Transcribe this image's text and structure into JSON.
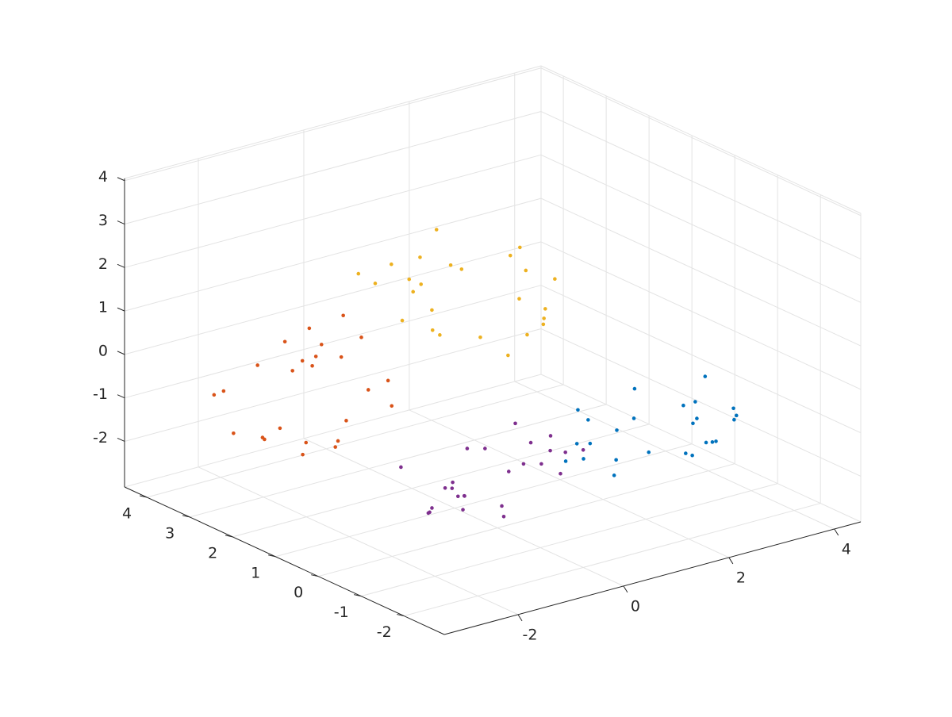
{
  "chart_data": {
    "type": "scatter3",
    "xlim": [
      -3.4,
      4.5
    ],
    "ylim": [
      -2.94,
      4.52
    ],
    "zlim": [
      -3.05,
      4.05
    ],
    "xticks": [
      -2,
      0,
      2,
      4
    ],
    "yticks": [
      -2,
      -1,
      0,
      1,
      2,
      3,
      4
    ],
    "zticks": [
      -2,
      -1,
      0,
      1,
      2,
      3,
      4
    ],
    "grid": true,
    "series": [
      {
        "color": "#0072BD",
        "x": [
          3.3,
          2.2,
          4.1,
          2.8,
          3.6,
          1.8,
          3.9,
          2.5,
          3.1,
          4.4,
          2.1,
          3.4,
          2.7,
          3.8,
          2.0,
          3.2,
          2.4,
          4.0,
          2.9,
          3.5,
          1.7,
          3.7,
          2.6,
          4.2,
          3.0
        ],
        "y": [
          -0.5,
          0.7,
          0.2,
          -1.1,
          0.9,
          0.1,
          -0.3,
          1.2,
          -0.8,
          0.4,
          -0.2,
          1.0,
          0.6,
          -0.9,
          0.3,
          -0.4,
          1.1,
          -0.6,
          0.8,
          -1.2,
          0.5,
          -0.1,
          0.0,
          0.3,
          -0.7
        ],
        "z": [
          -1.5,
          -2.5,
          -1.0,
          -1.8,
          -2.9,
          -1.2,
          -2.2,
          -1.7,
          -0.8,
          -2.7,
          -1.4,
          -2.1,
          -3.0,
          -1.3,
          -1.9,
          -1.1,
          -2.4,
          -1.6,
          -2.8,
          -0.9,
          -2.3,
          -1.7,
          -0.7,
          -2.6,
          -2.0
        ]
      },
      {
        "color": "#D95319",
        "x": [
          -0.6,
          -1.6,
          -0.1,
          -0.9,
          -2.0,
          -0.3,
          -1.3,
          -0.8,
          0.1,
          -1.8,
          -0.5,
          -1.2,
          -2.1,
          -0.4,
          -1.0,
          -0.2,
          -1.5,
          -0.7,
          -1.9,
          0.0,
          -1.4,
          -0.8,
          0.2,
          -1.7,
          -1.1
        ],
        "y": [
          3.5,
          2.5,
          4.2,
          3.0,
          3.7,
          2.1,
          4.0,
          2.8,
          3.3,
          4.4,
          2.4,
          3.6,
          2.9,
          3.9,
          2.3,
          3.4,
          2.7,
          4.1,
          3.1,
          3.6,
          2.0,
          3.8,
          2.8,
          4.3,
          3.2
        ],
        "z": [
          -0.5,
          -1.7,
          -1.2,
          0.1,
          -1.9,
          -1.1,
          -0.7,
          -2.2,
          -0.2,
          -1.4,
          -0.8,
          -2.0,
          -1.6,
          -0.1,
          -1.3,
          -0.6,
          -2.1,
          -0.4,
          -1.8,
          0.2,
          -1.5,
          -0.9,
          -1.0,
          -1.3,
          -0.3
        ]
      },
      {
        "color": "#EDB120",
        "x": [
          0.5,
          1.7,
          1.2,
          -0.1,
          1.9,
          1.1,
          0.7,
          2.2,
          0.2,
          1.4,
          0.8,
          2.0,
          1.6,
          0.1,
          1.3,
          0.6,
          2.1,
          0.4,
          1.8,
          -0.2,
          1.5,
          0.9,
          1.0,
          1.3,
          0.3
        ],
        "y": [
          2.4,
          1.4,
          2.9,
          2.1,
          1.0,
          2.7,
          1.7,
          2.2,
          3.1,
          1.2,
          2.5,
          1.8,
          0.9,
          2.6,
          2.0,
          2.8,
          1.5,
          2.3,
          1.1,
          3.0,
          1.6,
          2.2,
          3.2,
          1.3,
          1.9
        ],
        "z": [
          1.3,
          0.2,
          2.1,
          0.8,
          1.6,
          -0.2,
          1.9,
          0.5,
          1.1,
          2.4,
          0.1,
          1.4,
          0.7,
          1.8,
          0.0,
          1.2,
          0.4,
          2.0,
          0.9,
          1.5,
          -0.3,
          1.7,
          0.6,
          2.2,
          1.0
        ]
      },
      {
        "color": "#7E2F8E",
        "x": [
          -0.3,
          0.8,
          -1.1,
          0.2,
          -0.6,
          1.2,
          -0.9,
          0.5,
          -0.1,
          -1.4,
          0.9,
          -0.4,
          0.3,
          -0.8,
          1.0,
          -0.2,
          0.6,
          -1.0,
          0.1,
          -0.5,
          1.3,
          -0.7,
          0.4,
          -1.2,
          0.0
        ],
        "y": [
          0.4,
          -0.6,
          0.9,
          0.1,
          -1.0,
          0.7,
          -0.3,
          0.2,
          1.1,
          -0.8,
          0.5,
          -0.2,
          -1.1,
          0.6,
          0.0,
          0.8,
          -0.5,
          0.3,
          -0.9,
          1.0,
          -0.4,
          0.2,
          1.2,
          -0.7,
          -0.1
        ],
        "z": [
          -2.4,
          -1.3,
          -1.7,
          -2.9,
          -1.1,
          -1.8,
          -2.2,
          -0.9,
          -2.6,
          -1.5,
          -2.1,
          -1.0,
          -1.4,
          -2.7,
          -1.6,
          -2.3,
          -0.9,
          -2.4,
          -1.2,
          -3.0,
          -1.5,
          -2.0,
          -1.9,
          -1.6,
          -2.5
        ]
      }
    ]
  }
}
